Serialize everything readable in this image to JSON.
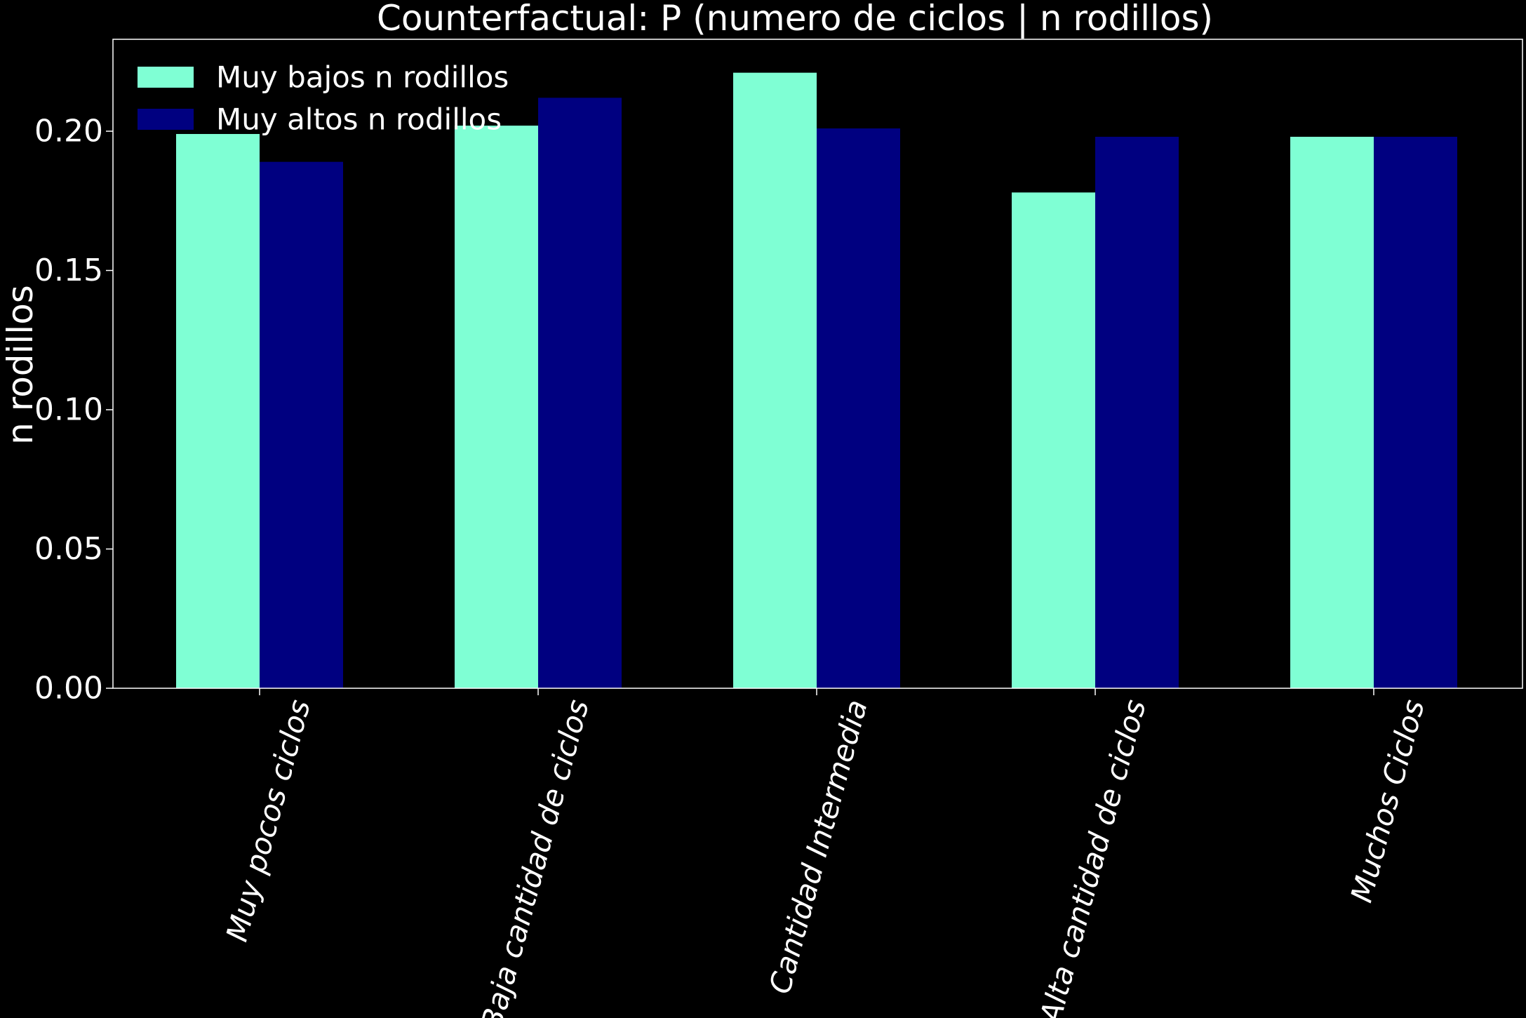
{
  "chart_data": {
    "type": "bar",
    "title": "Counterfactual: P (numero de ciclos | n rodillos)",
    "xlabel": "",
    "ylabel": "n rodillos",
    "categories": [
      "Muy pocos ciclos",
      "Baja cantidad de ciclos",
      "Cantidad Intermedia",
      "Alta cantidad de ciclos",
      "Muchos Ciclos"
    ],
    "series": [
      {
        "name": "Muy bajos n rodillos",
        "color": "#7fffd4",
        "values": [
          0.199,
          0.202,
          0.221,
          0.178,
          0.198
        ]
      },
      {
        "name": "Muy altos n rodillos",
        "color": "#000080",
        "values": [
          0.189,
          0.212,
          0.201,
          0.198,
          0.198
        ]
      }
    ],
    "ylim": [
      0,
      0.233
    ],
    "yticks": [
      "0.00",
      "0.05",
      "0.10",
      "0.15",
      "0.20"
    ],
    "legend_position": "top-left",
    "grid": false,
    "background": "#000000",
    "text_color": "#ffffff"
  }
}
